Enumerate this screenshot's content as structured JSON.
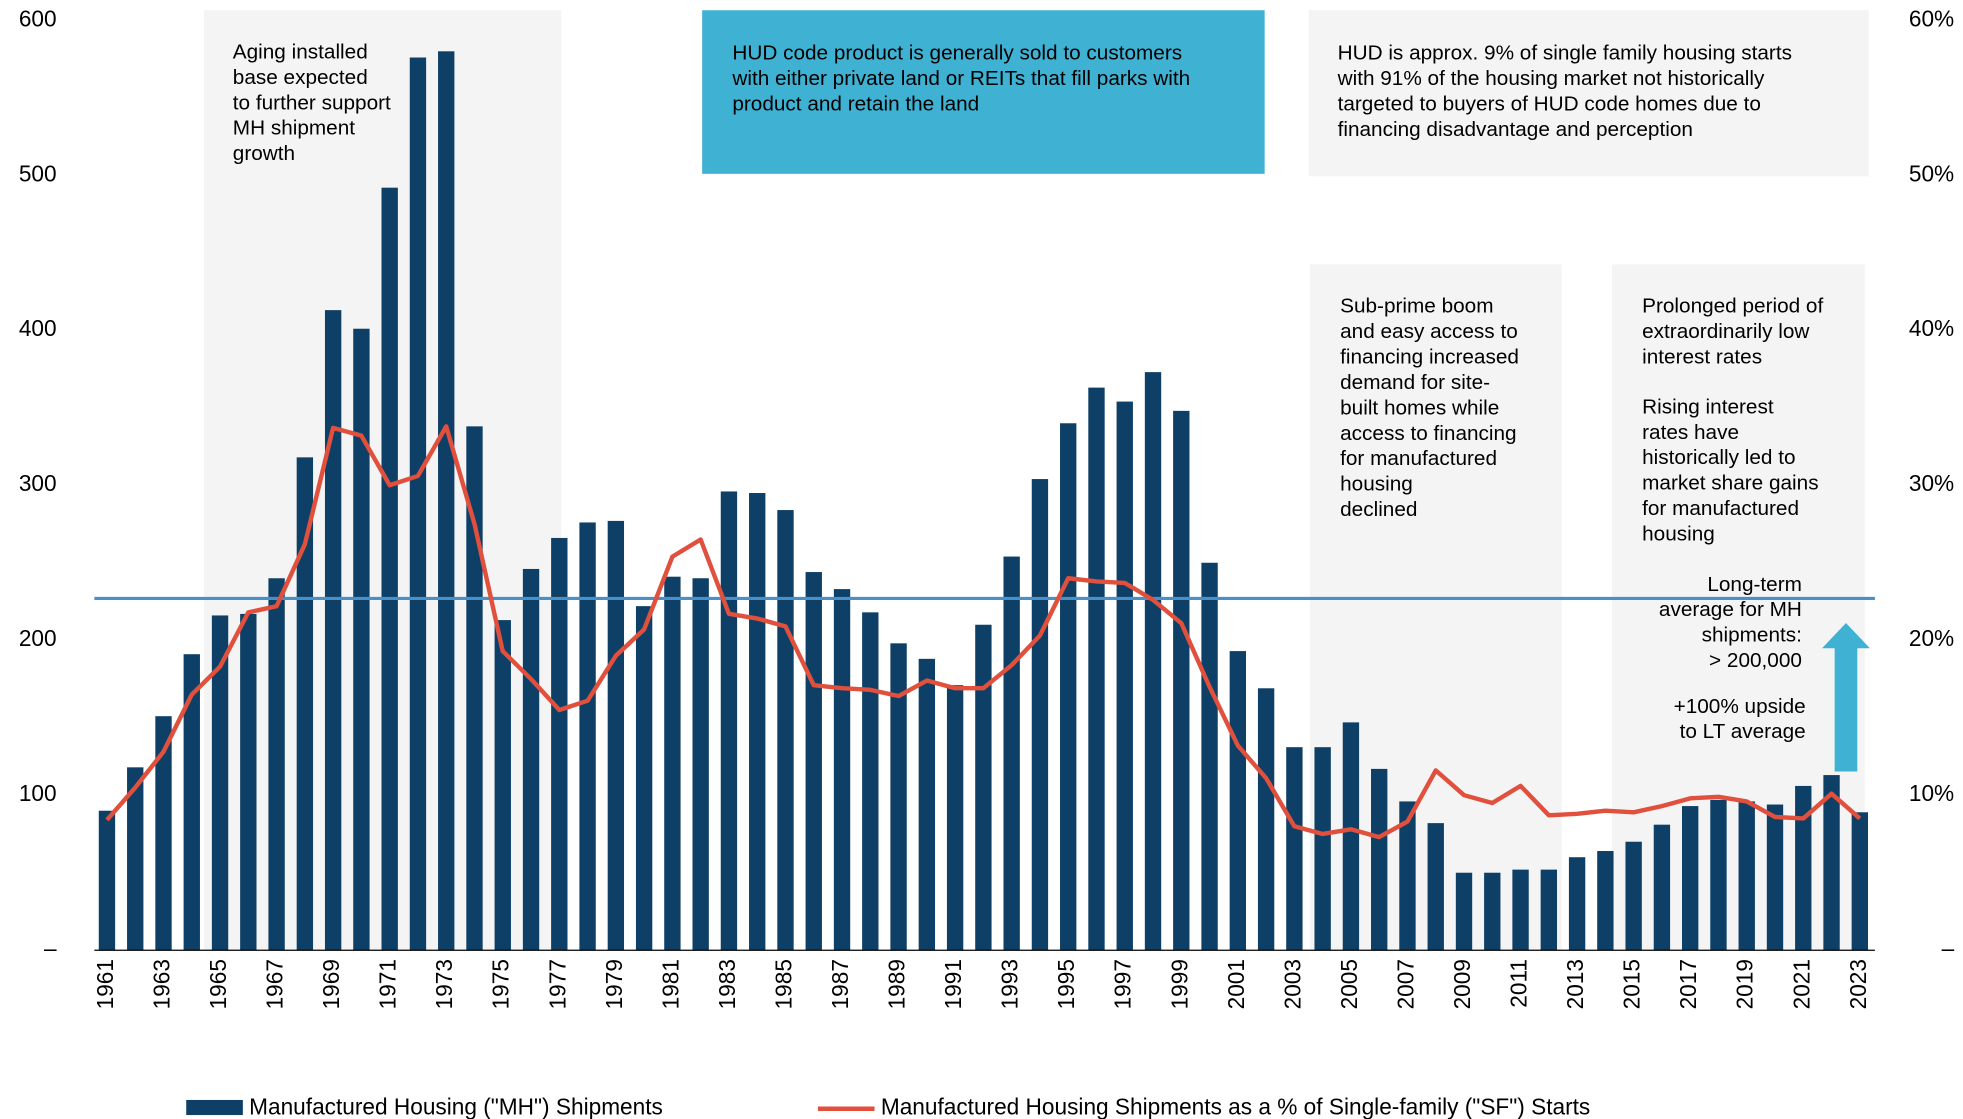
{
  "chart_data": {
    "type": "bar",
    "categories": [
      "1961",
      null,
      "1963",
      null,
      "1965",
      null,
      "1967",
      null,
      "1969",
      null,
      "1971",
      null,
      "1973",
      null,
      "1975",
      null,
      "1977",
      null,
      "1979",
      null,
      "1981",
      null,
      "1983",
      null,
      "1985",
      null,
      "1987",
      null,
      "1989",
      null,
      "1991",
      null,
      "1993",
      null,
      "1995",
      null,
      "1997",
      null,
      "1999",
      null,
      "2001",
      null,
      "2003",
      null,
      "2005",
      null,
      "2007",
      null,
      "2009",
      null,
      "2011",
      null,
      "2013",
      null,
      "2015",
      null,
      "2017",
      null,
      "2019",
      null,
      "2021",
      null,
      "2023"
    ],
    "series": [
      {
        "name": "Manufactured Housing (\"MH\") Shipments",
        "type": "bar",
        "color": "#0e3f66",
        "values": [
          90,
          118,
          151,
          191,
          216,
          217,
          240,
          318,
          413,
          401,
          492,
          576,
          580,
          338,
          213,
          246,
          266,
          276,
          277,
          222,
          241,
          240,
          296,
          295,
          284,
          244,
          233,
          218,
          198,
          188,
          171,
          210,
          254,
          304,
          340,
          363,
          354,
          373,
          348,
          250,
          193,
          169,
          131,
          131,
          147,
          117,
          96,
          82,
          50,
          50,
          52,
          52,
          60,
          64,
          70,
          81,
          93,
          97,
          96,
          94,
          106,
          113,
          89
        ]
      },
      {
        "name": "Manufactured Housing Shipments as a % of Single-family (\"SF\") Starts",
        "type": "line",
        "axis": "y2",
        "color": "#e0503c",
        "values": [
          8.4,
          10.5,
          12.8,
          16.5,
          18.3,
          21.8,
          22.2,
          26.2,
          33.7,
          33.2,
          30.0,
          30.6,
          33.8,
          27.5,
          19.3,
          17.5,
          15.5,
          16.1,
          19.0,
          20.7,
          25.4,
          26.5,
          21.7,
          21.4,
          20.9,
          17.1,
          16.9,
          16.8,
          16.4,
          17.4,
          16.9,
          16.9,
          18.4,
          20.3,
          24.0,
          23.8,
          23.7,
          22.6,
          21.1,
          17.0,
          13.2,
          11.1,
          8.0,
          7.5,
          7.8,
          7.3,
          8.3,
          11.6,
          10.0,
          9.5,
          10.6,
          8.7,
          8.8,
          9.0,
          8.9,
          9.3,
          9.8,
          9.9,
          9.6,
          8.6,
          8.5,
          10.1,
          8.5
        ]
      }
    ],
    "ylim": [
      0,
      600
    ],
    "yticks": [
      {
        "value": 0,
        "label": "–"
      },
      100,
      200,
      300,
      400,
      500,
      600
    ],
    "y2lim": [
      0,
      60
    ],
    "y2ticks": [
      {
        "value": 0,
        "label": "–"
      },
      {
        "value": 10,
        "label": "10%"
      },
      {
        "value": 20,
        "label": "20%"
      },
      {
        "value": 30,
        "label": "30%"
      },
      {
        "value": 40,
        "label": "40%"
      },
      {
        "value": 50,
        "label": "50%"
      },
      {
        "value": 60,
        "label": "60%"
      }
    ],
    "reference_line": {
      "value": 227,
      "color": "#4a90c8"
    },
    "legend": "bottom",
    "annotations": [
      {
        "lines": [
          "Aging installed",
          "base expected",
          "to further support",
          "MH shipment",
          "growth"
        ]
      },
      {
        "lines": [
          "HUD code product  is generally sold to customers",
          "with either private land or REITs that fill parks with",
          "product and retain the land"
        ]
      },
      {
        "lines": [
          "HUD is approx. 9% of single family housing starts",
          "with 91% of the housing market not historically",
          "targeted to buyers of HUD code homes due to",
          "financing disadvantage and perception"
        ]
      },
      {
        "lines": [
          "Sub-prime boom",
          "and easy access to",
          "financing increased",
          "demand for site-",
          "built homes while",
          "access to financing",
          "for manufactured",
          "housing",
          "declined"
        ]
      },
      {
        "lines": [
          "Prolonged period of",
          "extraordinarily low",
          "interest rates"
        ]
      },
      {
        "lines": [
          "Rising interest",
          "rates have",
          "historically led to",
          "market share gains",
          "for manufactured",
          "housing"
        ]
      },
      {
        "lines": [
          "Long-term",
          "average for MH",
          "shipments:",
          "> 200,000"
        ]
      },
      {
        "lines": [
          "+100% upside",
          "to LT average"
        ]
      }
    ]
  }
}
